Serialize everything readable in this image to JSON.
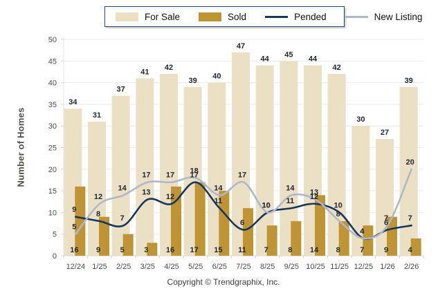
{
  "legend": {
    "items": [
      {
        "label": "For Sale",
        "kind": "bar",
        "color": "#ECE0C4"
      },
      {
        "label": "Sold",
        "kind": "bar",
        "color": "#BE9435"
      },
      {
        "label": "Pended",
        "kind": "line",
        "color": "#17365D"
      },
      {
        "label": "New Listing",
        "kind": "line",
        "color": "#AEB7CB"
      }
    ]
  },
  "chart_data": {
    "type": "bar+line",
    "title": "",
    "categories": [
      "12/24",
      "1/25",
      "2/25",
      "3/25",
      "4/25",
      "5/25",
      "6/25",
      "7/25",
      "8/25",
      "9/25",
      "10/25",
      "11/25",
      "12/25",
      "1/26",
      "2/26"
    ],
    "series": [
      {
        "name": "For Sale",
        "type": "bar",
        "color": "#ECE0C4",
        "values": [
          34,
          31,
          37,
          41,
          42,
          39,
          40,
          47,
          44,
          45,
          44,
          42,
          30,
          27,
          39
        ]
      },
      {
        "name": "Sold",
        "type": "bar",
        "color": "#BE9435",
        "values": [
          16,
          9,
          5,
          3,
          16,
          17,
          15,
          11,
          7,
          8,
          14,
          8,
          7,
          9,
          4
        ]
      },
      {
        "name": "Pended",
        "type": "line",
        "color": "#17365D",
        "values": [
          9,
          8,
          7,
          13,
          12,
          17,
          11,
          6,
          10,
          11,
          12,
          10,
          4,
          6,
          7
        ]
      },
      {
        "name": "New Listing",
        "type": "line",
        "color": "#AEB7CB",
        "values": [
          5,
          12,
          14,
          17,
          17,
          18,
          14,
          17,
          10,
          14,
          13,
          8,
          4,
          7,
          20
        ]
      }
    ],
    "xlabel": "",
    "ylabel": "Number of Homes",
    "ylim": [
      0,
      50
    ],
    "yticks": [
      0,
      5,
      10,
      15,
      20,
      25,
      30,
      35,
      40,
      45,
      50
    ],
    "grid": true,
    "legend_position": "top",
    "gridline_color": "#e9e9e9",
    "axis_color": "#c8d1e0"
  },
  "footer": {
    "copyright": "Copyright © Trendgraphix, Inc."
  }
}
